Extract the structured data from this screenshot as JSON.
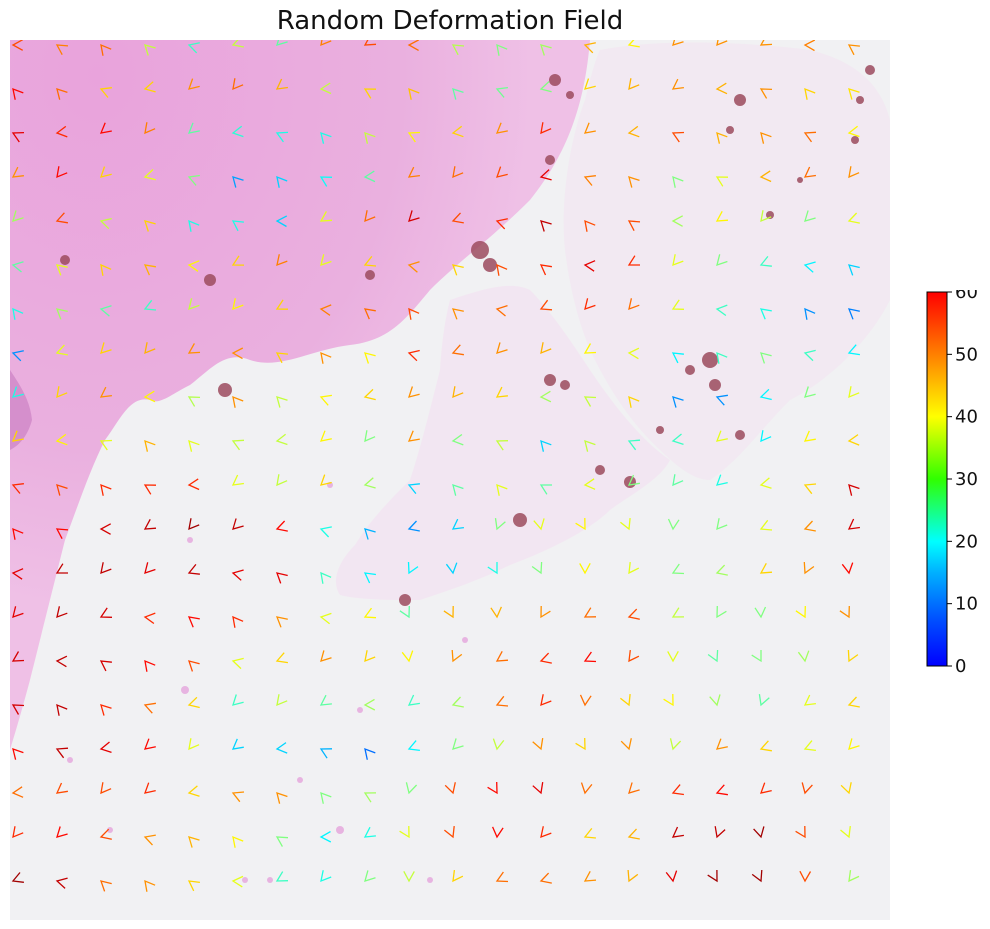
{
  "chart_data": {
    "type": "quiver",
    "title": "Random Deformation Field",
    "xlabel": "",
    "ylabel": "",
    "axes_visible": false,
    "background": "H&E stained tissue section image",
    "grid_shape": [
      20,
      20
    ],
    "colormap": "jet",
    "colorbar": {
      "min": 0,
      "max": 60,
      "ticks": [
        "0",
        "10",
        "20",
        "30",
        "40",
        "50",
        "60"
      ],
      "placement": "right"
    },
    "magnitude_rows": [
      [
        48,
        45,
        46,
        34,
        26,
        34,
        28,
        45,
        48,
        46,
        33,
        30,
        32,
        42,
        38,
        44,
        44,
        44,
        45,
        44
      ],
      [
        52,
        46,
        40,
        40,
        44,
        46,
        42,
        34,
        40,
        41,
        28,
        29,
        30,
        40,
        42,
        44,
        42,
        44,
        40,
        39
      ],
      [
        54,
        50,
        52,
        45,
        28,
        25,
        24,
        24,
        34,
        38,
        40,
        44,
        50,
        44,
        42,
        48,
        42,
        44,
        46,
        38
      ],
      [
        44,
        52,
        40,
        36,
        30,
        17,
        20,
        23,
        28,
        45,
        46,
        48,
        54,
        45,
        44,
        30,
        36,
        42,
        46,
        44
      ],
      [
        32,
        48,
        34,
        40,
        24,
        24,
        20,
        36,
        46,
        55,
        48,
        50,
        56,
        48,
        48,
        32,
        38,
        34,
        30,
        36
      ],
      [
        28,
        36,
        40,
        42,
        38,
        40,
        45,
        36,
        40,
        44,
        40,
        48,
        50,
        54,
        50,
        36,
        30,
        26,
        22,
        20
      ],
      [
        24,
        32,
        28,
        26,
        34,
        38,
        40,
        45,
        46,
        48,
        44,
        46,
        48,
        50,
        46,
        36,
        26,
        24,
        16,
        15
      ],
      [
        16,
        36,
        40,
        42,
        44,
        44,
        40,
        44,
        38,
        50,
        46,
        44,
        42,
        38,
        36,
        22,
        26,
        30,
        26,
        22
      ],
      [
        24,
        40,
        44,
        38,
        33,
        44,
        34,
        38,
        40,
        44,
        42,
        40,
        32,
        34,
        40,
        16,
        16,
        22,
        30,
        36
      ],
      [
        40,
        38,
        36,
        42,
        36,
        34,
        34,
        38,
        30,
        44,
        30,
        34,
        20,
        34,
        26,
        26,
        36,
        22,
        38,
        40
      ],
      [
        50,
        48,
        50,
        50,
        50,
        36,
        34,
        40,
        32,
        20,
        28,
        36,
        28,
        36,
        30,
        28,
        24,
        36,
        40,
        55
      ],
      [
        52,
        52,
        55,
        56,
        58,
        56,
        52,
        24,
        18,
        16,
        20,
        30,
        36,
        38,
        36,
        30,
        30,
        36,
        44,
        55
      ],
      [
        54,
        56,
        56,
        54,
        56,
        54,
        54,
        26,
        22,
        22,
        20,
        24,
        30,
        38,
        36,
        30,
        32,
        40,
        44,
        52
      ],
      [
        54,
        56,
        55,
        50,
        52,
        50,
        44,
        36,
        38,
        28,
        42,
        42,
        44,
        46,
        48,
        34,
        30,
        30,
        38,
        44
      ],
      [
        55,
        56,
        55,
        52,
        48,
        36,
        40,
        44,
        40,
        38,
        44,
        46,
        50,
        52,
        48,
        36,
        28,
        30,
        32,
        40
      ],
      [
        55,
        56,
        50,
        46,
        40,
        26,
        34,
        28,
        32,
        26,
        32,
        46,
        50,
        46,
        40,
        38,
        32,
        28,
        36,
        40
      ],
      [
        52,
        56,
        54,
        52,
        36,
        20,
        20,
        18,
        14,
        22,
        30,
        34,
        44,
        40,
        44,
        34,
        44,
        40,
        36,
        38
      ],
      [
        46,
        48,
        48,
        50,
        40,
        44,
        44,
        30,
        32,
        30,
        48,
        52,
        54,
        46,
        46,
        50,
        52,
        50,
        48,
        40
      ],
      [
        50,
        52,
        48,
        44,
        42,
        38,
        30,
        22,
        24,
        36,
        48,
        52,
        50,
        40,
        42,
        56,
        56,
        58,
        48,
        36
      ],
      [
        58,
        56,
        46,
        44,
        40,
        36,
        26,
        24,
        30,
        34,
        40,
        46,
        46,
        44,
        42,
        54,
        58,
        58,
        48,
        32
      ]
    ]
  }
}
